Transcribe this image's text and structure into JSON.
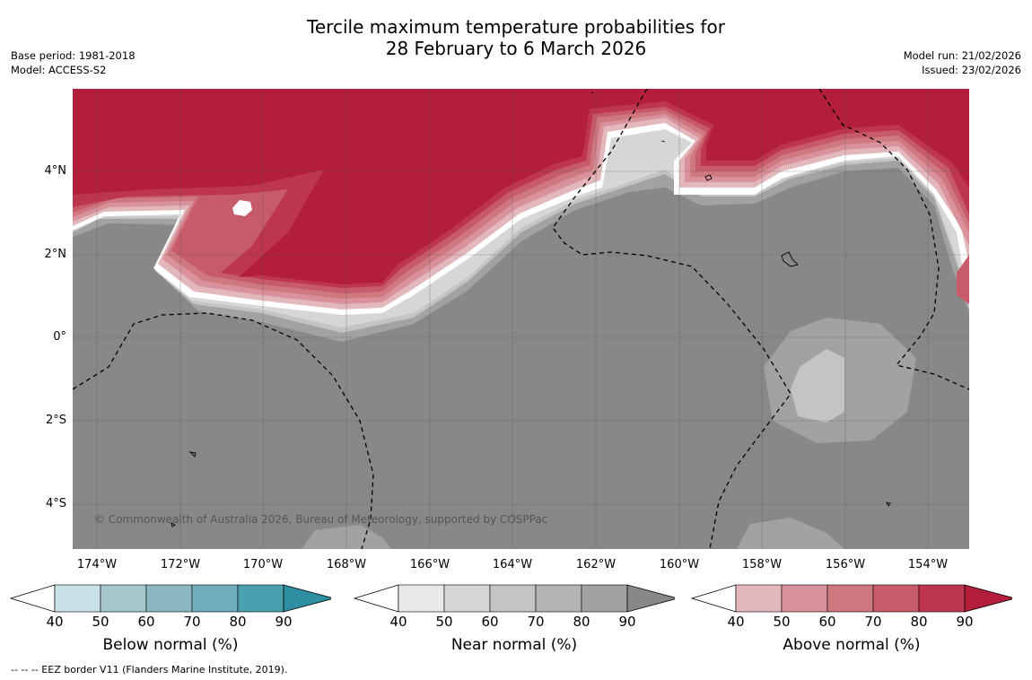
{
  "title_line1": "Tercile maximum temperature probabilities for",
  "title_line2": "28 February to 6 March 2026",
  "base_period": "Base period: 1981-2018",
  "model": "Model: ACCESS-S2",
  "model_run": "Model run: 21/02/2026",
  "issued": "Issued: 23/02/2026",
  "copyright": "© Commonwealth of Australia 2026, Bureau of Meteorology, supported by COSPPac",
  "eez_note": "--  --  -- EEZ border V11 (Flanders Marine Institute, 2019).",
  "lat_labels": [
    "4°N",
    "2°N",
    "0°",
    "2°S",
    "4°S"
  ],
  "lon_labels": [
    "174°W",
    "172°W",
    "170°W",
    "168°W",
    "166°W",
    "164°W",
    "162°W",
    "160°W",
    "158°W",
    "156°W",
    "154°W"
  ],
  "colorbars": [
    {
      "label": "Below normal (%)",
      "ticks": [
        "40",
        "50",
        "60",
        "70",
        "80",
        "90"
      ],
      "colors": [
        "#ffffff",
        "#c9e2e8",
        "#a6c7cc",
        "#8bb7c3",
        "#6eaebd",
        "#4ba0b0",
        "#2e8fa2"
      ]
    },
    {
      "label": "Near normal (%)",
      "ticks": [
        "40",
        "50",
        "60",
        "70",
        "80",
        "90"
      ],
      "colors": [
        "#ffffff",
        "#e8e8e8",
        "#d6d6d6",
        "#c4c4c4",
        "#b4b4b4",
        "#a2a2a2",
        "#888888"
      ]
    },
    {
      "label": "Above normal (%)",
      "ticks": [
        "40",
        "50",
        "60",
        "70",
        "80",
        "90"
      ],
      "colors": [
        "#ffffff",
        "#e3b8bd",
        "#d9929b",
        "#cf7880",
        "#c85b69",
        "#be3550",
        "#b21e3b"
      ]
    }
  ],
  "map_colors": {
    "above": [
      "#b21e3b",
      "#be3550",
      "#c85b69",
      "#cf7880",
      "#d9929b",
      "#e3b8bd"
    ],
    "near": [
      "#888888",
      "#a2a2a2",
      "#c4c4c4",
      "#d6d6d6"
    ]
  }
}
